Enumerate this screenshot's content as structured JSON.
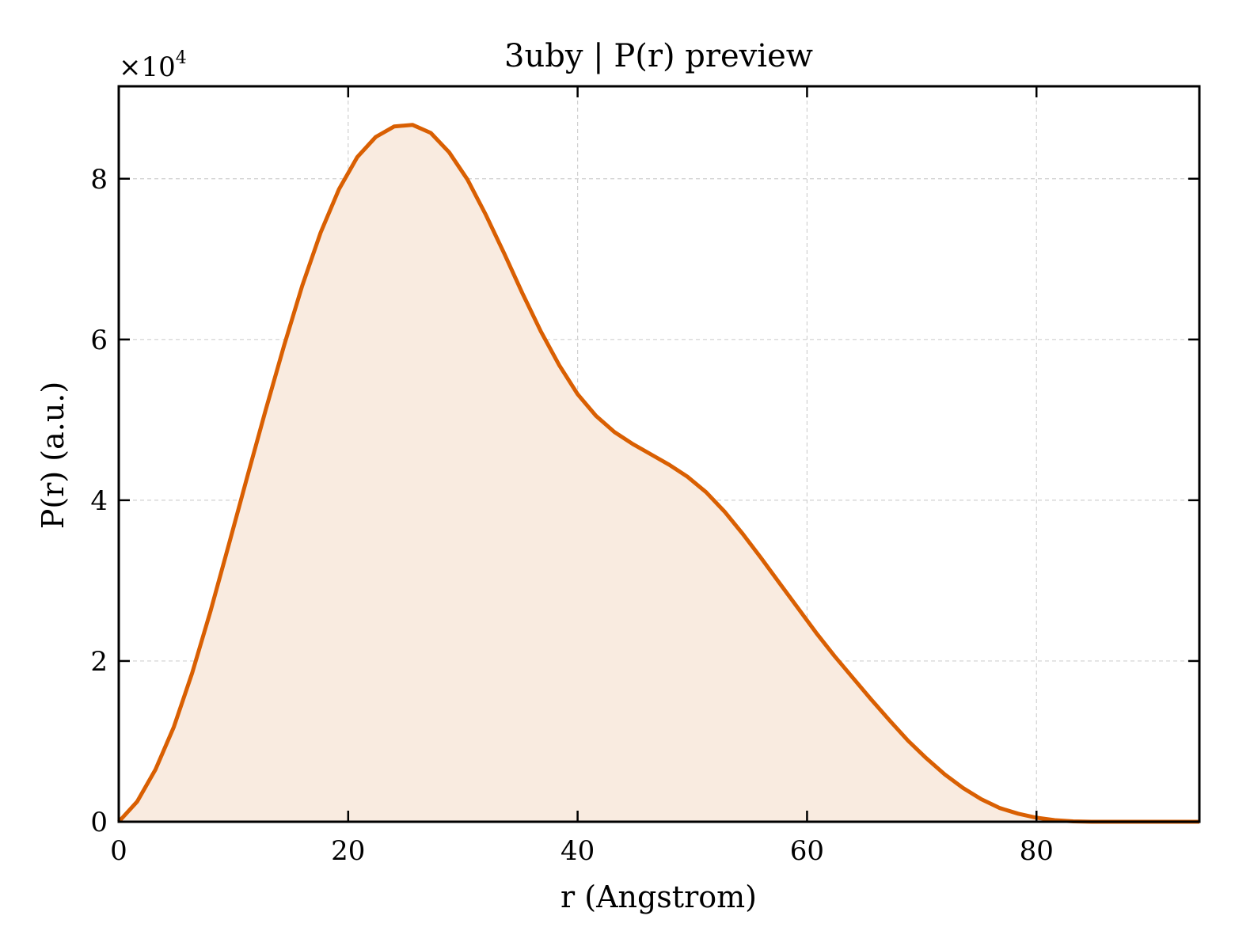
{
  "chart_data": {
    "type": "area",
    "title": "3uby | P(r) preview",
    "xlabel": "r (Angstrom)",
    "ylabel": "P(r) (a.u.)",
    "y_multiplier": {
      "base": "×10",
      "exponent": "4"
    },
    "xlim": [
      0,
      94.2
    ],
    "ylim": [
      0,
      91500
    ],
    "xticks": [
      0,
      20,
      40,
      60,
      80
    ],
    "xtick_labels": [
      "0",
      "20",
      "40",
      "60",
      "80"
    ],
    "yticks": [
      0,
      20000,
      40000,
      60000,
      80000
    ],
    "ytick_labels": [
      "0",
      "2",
      "4",
      "6",
      "8"
    ],
    "grid": true,
    "line_color": "#d95f02",
    "fill_color": "#f9ebe0",
    "series": [
      {
        "x": [
          0,
          1.6,
          3.2,
          4.8,
          6.4,
          8.0,
          9.6,
          11.2,
          12.8,
          14.4,
          16.0,
          17.6,
          19.2,
          20.8,
          22.4,
          24.0,
          25.6,
          27.2,
          28.8,
          30.4,
          32.0,
          33.6,
          35.2,
          36.8,
          38.4,
          40.0,
          41.6,
          43.2,
          44.8,
          46.4,
          48.0,
          49.6,
          51.2,
          52.8,
          54.4,
          56.0,
          57.6,
          59.2,
          60.8,
          62.4,
          64.0,
          65.6,
          67.2,
          68.8,
          70.4,
          72.0,
          73.6,
          75.2,
          76.8,
          78.4,
          80.0,
          81.6,
          83.2,
          84.8,
          86.4,
          88.0,
          89.6,
          91.2,
          92.8,
          94.2
        ],
        "y": [
          0,
          2500,
          6500,
          11800,
          18500,
          26200,
          34500,
          42900,
          51200,
          59200,
          66700,
          73300,
          78700,
          82700,
          85200,
          86500,
          86700,
          85700,
          83300,
          79900,
          75500,
          70700,
          65700,
          61000,
          56800,
          53200,
          50500,
          48500,
          47000,
          45700,
          44400,
          42900,
          41000,
          38600,
          35800,
          32800,
          29700,
          26600,
          23500,
          20600,
          17900,
          15200,
          12600,
          10100,
          7900,
          5900,
          4200,
          2800,
          1700,
          1000,
          500,
          200,
          50,
          0,
          0,
          0,
          0,
          0,
          0,
          0
        ]
      }
    ]
  }
}
